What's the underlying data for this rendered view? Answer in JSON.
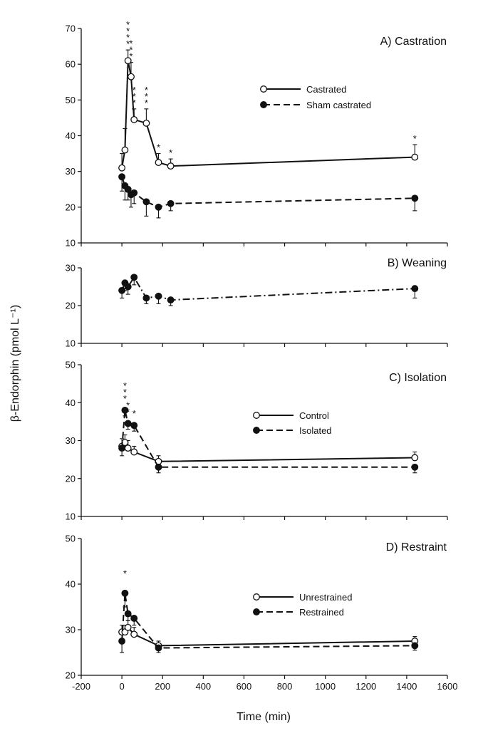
{
  "figure": {
    "ylabel": "β-Endorphin (pmol L⁻¹)",
    "xlabel": "Time (min)",
    "x_ticks": [
      "-200",
      "0",
      "200",
      "400",
      "600",
      "800",
      "1000",
      "1200",
      "1400",
      "1600"
    ]
  },
  "chart_data": [
    {
      "type": "line",
      "title": "A) Castration",
      "xlabel": "Time (min)",
      "ylabel": "β-Endorphin (pmol L⁻¹)",
      "xlim": [
        -200,
        1600
      ],
      "ylim": [
        10,
        70
      ],
      "y_ticks": [
        10,
        20,
        30,
        40,
        50,
        60,
        70
      ],
      "legend_position": "upper-right",
      "series": [
        {
          "name": "Castrated",
          "marker": "open",
          "line": "solid",
          "x": [
            0,
            15,
            30,
            45,
            60,
            120,
            180,
            240,
            1440
          ],
          "y": [
            31,
            36,
            61,
            56.5,
            44.5,
            43.5,
            32.5,
            31.5,
            34
          ],
          "err": [
            4,
            6,
            3,
            4,
            3,
            4,
            2.5,
            2,
            3.5
          ],
          "stars": [
            "",
            "",
            "****",
            "***",
            "***",
            "***",
            "*",
            "*",
            "*"
          ]
        },
        {
          "name": "Sham castrated",
          "marker": "filled",
          "line": "dashed",
          "x": [
            0,
            15,
            30,
            45,
            60,
            120,
            180,
            240,
            1440
          ],
          "y": [
            28.5,
            26,
            25,
            23.5,
            24,
            21.5,
            20,
            21,
            22.5
          ],
          "err": [
            4,
            4,
            3,
            3.5,
            3,
            4,
            3,
            2,
            3.5
          ],
          "stars": []
        }
      ]
    },
    {
      "type": "line",
      "title": "B) Weaning",
      "xlim": [
        -200,
        1600
      ],
      "ylim": [
        10,
        30
      ],
      "y_ticks": [
        10,
        20,
        30
      ],
      "series": [
        {
          "marker": "filled",
          "line": "dashdot",
          "x": [
            0,
            15,
            30,
            60,
            120,
            180,
            240,
            1440
          ],
          "y": [
            24,
            26,
            25,
            27.5,
            22,
            22.5,
            21.5,
            24.5
          ],
          "err": [
            2,
            2,
            2,
            2,
            1.5,
            2,
            1.5,
            2.5
          ],
          "stars": []
        }
      ]
    },
    {
      "type": "line",
      "title": "C) Isolation",
      "xlim": [
        -200,
        1600
      ],
      "ylim": [
        10,
        50
      ],
      "y_ticks": [
        10,
        20,
        30,
        40,
        50
      ],
      "legend_position": "right",
      "series": [
        {
          "name": "Control",
          "marker": "open",
          "line": "solid",
          "x": [
            0,
            15,
            30,
            60,
            180,
            1440
          ],
          "y": [
            28.5,
            29.5,
            28,
            27,
            24.5,
            25.5
          ],
          "err": [
            2,
            2,
            2,
            1.5,
            1.5,
            1.5
          ],
          "stars": []
        },
        {
          "name": "Isolated",
          "marker": "filled",
          "line": "dashed",
          "x": [
            0,
            15,
            30,
            60,
            180,
            1440
          ],
          "y": [
            28,
            38,
            34.5,
            34,
            23,
            23
          ],
          "err": [
            2,
            1.5,
            1.5,
            1.5,
            1.5,
            1.5
          ],
          "stars": [
            "",
            "***",
            "**",
            "*",
            "",
            ""
          ]
        }
      ]
    },
    {
      "type": "line",
      "title": "D) Restraint",
      "xlim": [
        -200,
        1600
      ],
      "ylim": [
        20,
        50
      ],
      "y_ticks": [
        20,
        30,
        40,
        50
      ],
      "legend_position": "right",
      "series": [
        {
          "name": "Unrestrained",
          "marker": "open",
          "line": "solid",
          "x": [
            0,
            15,
            30,
            60,
            180,
            1440
          ],
          "y": [
            29.5,
            29.5,
            30.5,
            29,
            26.5,
            27.5
          ],
          "err": [
            1.5,
            1.5,
            1.5,
            1.5,
            1,
            1
          ],
          "stars": []
        },
        {
          "name": "Restrained",
          "marker": "filled",
          "line": "dashed",
          "x": [
            0,
            15,
            30,
            60,
            180,
            1440
          ],
          "y": [
            27.5,
            38,
            33.5,
            32.5,
            26,
            26.5
          ],
          "err": [
            2.5,
            3,
            1.5,
            1.5,
            1,
            1
          ],
          "stars": [
            "",
            "*",
            "",
            "",
            "",
            ""
          ]
        }
      ]
    }
  ]
}
